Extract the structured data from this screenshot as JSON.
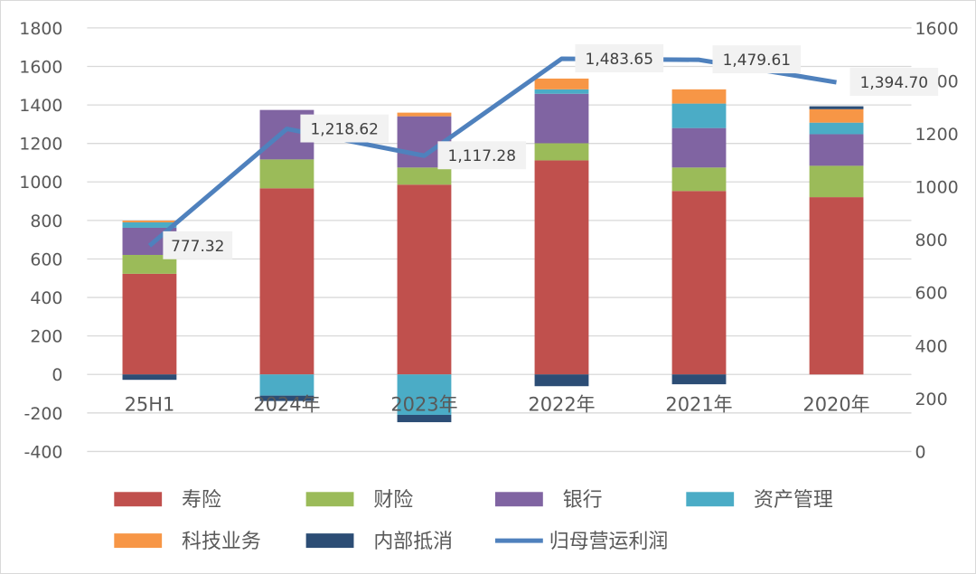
{
  "chart_data": {
    "type": "bar",
    "stacked": true,
    "categories": [
      "25H1",
      "2024年",
      "2023年",
      "2022年",
      "2021年",
      "2020年"
    ],
    "series": [
      {
        "name": "寿险",
        "color": "#c0504d",
        "values": [
          523,
          967,
          986,
          1112,
          953,
          921
        ]
      },
      {
        "name": "财险",
        "color": "#9bbb59",
        "values": [
          98,
          150,
          89,
          89,
          122,
          163
        ]
      },
      {
        "name": "银行",
        "color": "#8064a2",
        "values": [
          141,
          257,
          266,
          257,
          205,
          164
        ]
      },
      {
        "name": "资产管理",
        "color": "#4bacc6",
        "values": [
          28,
          -110,
          -210,
          23,
          127,
          60
        ]
      },
      {
        "name": "科技业务",
        "color": "#f79646",
        "values": [
          9,
          0,
          19,
          56,
          74,
          70
        ]
      },
      {
        "name": "内部抵消",
        "color": "#2c4d75",
        "values": [
          -28,
          -28,
          -38,
          -61,
          -51,
          15
        ]
      }
    ],
    "line": {
      "name": "归母营运利润",
      "color": "#4f81bd",
      "axis": "right",
      "values": [
        777.32,
        1218.62,
        1117.28,
        1483.65,
        1479.61,
        1394.7
      ],
      "labels": [
        "777.32",
        "1,218.62",
        "1,117.28",
        "1,483.65",
        "1,479.61",
        "1,394.70"
      ]
    },
    "ylim": [
      -400,
      1800
    ],
    "yticks": [
      "-400",
      "-200",
      "0",
      "200",
      "400",
      "600",
      "800",
      "1000",
      "1200",
      "1400",
      "1600",
      "1800"
    ],
    "y2lim": [
      0,
      1600
    ],
    "y2ticks": [
      "0",
      "200",
      "400",
      "600",
      "800",
      "1000",
      "1200",
      "1400",
      "1600"
    ],
    "grid": true,
    "legend_position": "bottom",
    "title": "",
    "xlabel": "",
    "ylabel": ""
  }
}
